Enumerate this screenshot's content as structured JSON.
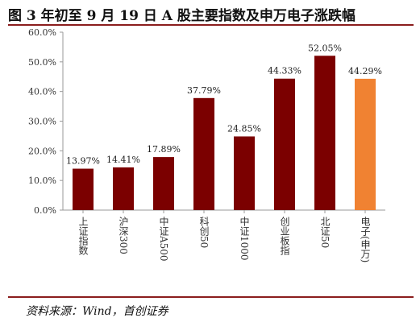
{
  "title": "图 3 年初至 9 月 19 日 A 股主要指数及申万电子涨跌幅",
  "source": "资料来源：Wind，首创证券",
  "colors": {
    "bar": "#7b0000",
    "highlight": "#f08232",
    "rule": "#8b1d1d",
    "axis": "#9a9a9a"
  },
  "chart_data": {
    "type": "bar",
    "title": "图 3 年初至 9 月 19 日 A 股主要指数及申万电子涨跌幅",
    "categories": [
      "上证指数",
      "沪深300",
      "中证A500",
      "科创50",
      "中证1000",
      "创业板指",
      "北证50",
      "电子(申万)"
    ],
    "values": [
      13.97,
      14.41,
      17.89,
      37.79,
      24.85,
      44.33,
      52.05,
      44.29
    ],
    "value_labels": [
      "13.97%",
      "14.41%",
      "17.89%",
      "37.79%",
      "24.85%",
      "44.33%",
      "52.05%",
      "44.29%"
    ],
    "highlight_index": 7,
    "ylim": [
      0,
      60
    ],
    "yticks": [
      "0.0%",
      "10.0%",
      "20.0%",
      "30.0%",
      "40.0%",
      "50.0%",
      "60.0%"
    ],
    "xlabel": "",
    "ylabel": "",
    "grid": false,
    "legend": "none"
  }
}
